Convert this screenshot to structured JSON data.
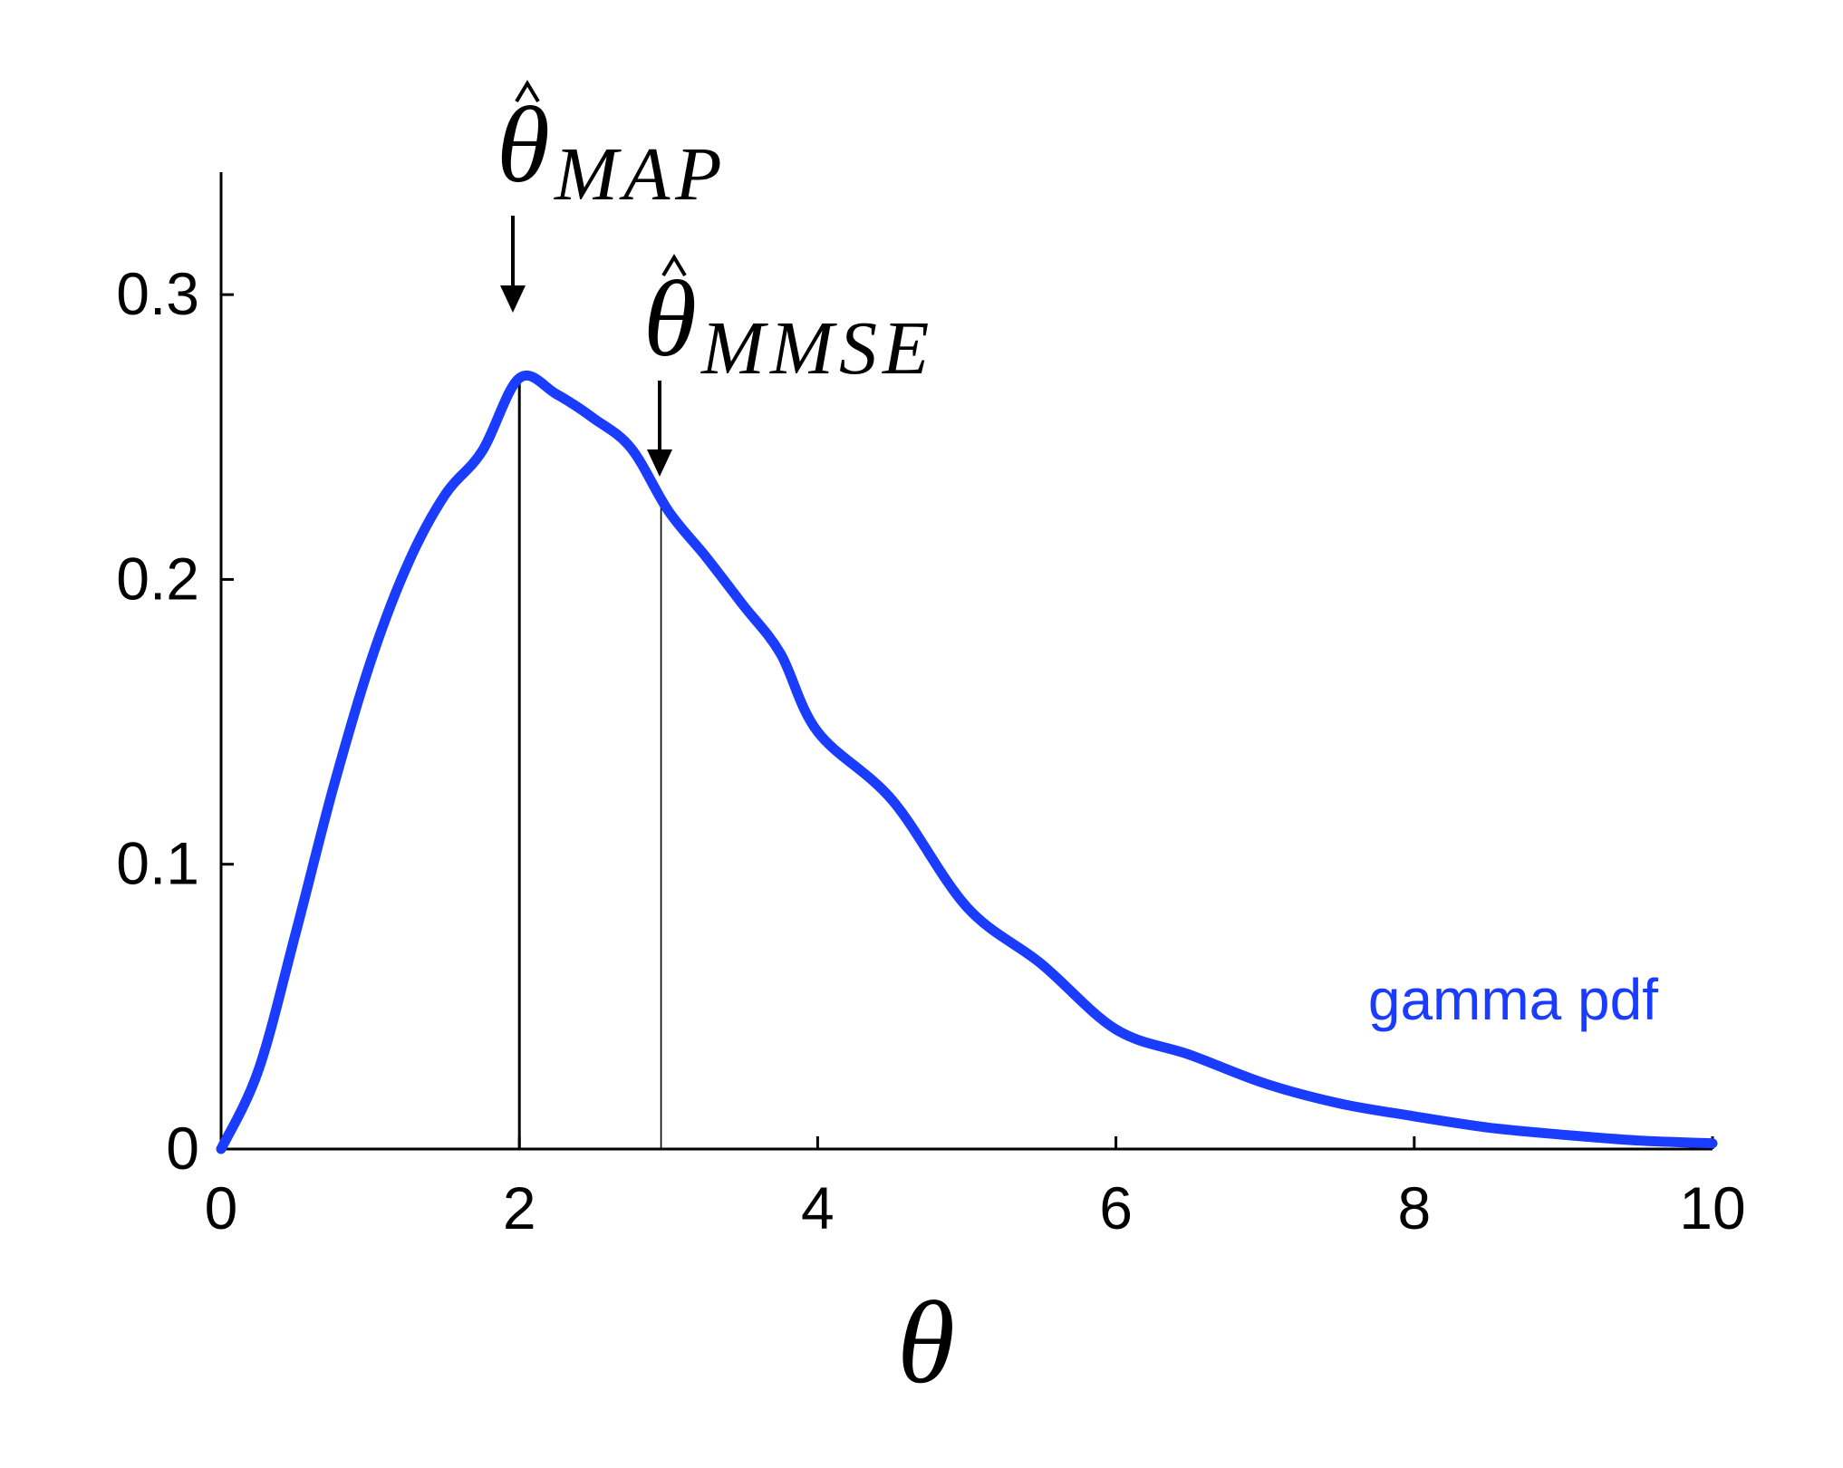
{
  "chart_data": {
    "type": "line",
    "title": "",
    "xlabel": "θ",
    "ylabel": "",
    "xlim": [
      0,
      10
    ],
    "ylim": [
      0,
      0.343
    ],
    "x_ticks": [
      0,
      2,
      4,
      6,
      8,
      10
    ],
    "x_tick_labels": [
      "0",
      "2",
      "4",
      "6",
      "8",
      "10"
    ],
    "y_ticks": [
      0,
      0.1,
      0.2,
      0.3
    ],
    "y_tick_labels": [
      "0",
      "0.1",
      "0.2",
      "0.3"
    ],
    "grid": false,
    "series": [
      {
        "name": "gamma pdf",
        "color": "#1a3cff",
        "x": [
          0,
          0.25,
          0.5,
          0.75,
          1,
          1.25,
          1.5,
          1.75,
          2,
          2.25,
          2.5,
          2.75,
          3,
          3.25,
          3.5,
          3.75,
          4,
          4.5,
          5,
          5.5,
          6,
          6.5,
          7,
          7.5,
          8,
          8.5,
          9,
          9.5,
          10
        ],
        "y": [
          0,
          0.0276,
          0.0758,
          0.1264,
          0.1707,
          0.2052,
          0.2296,
          0.245,
          0.2707,
          0.265,
          0.2565,
          0.246,
          0.224,
          0.208,
          0.191,
          0.174,
          0.1465,
          0.1225,
          0.085,
          0.065,
          0.042,
          0.033,
          0.023,
          0.016,
          0.0115,
          0.0075,
          0.005,
          0.003,
          0.002
        ]
      }
    ],
    "markers": [
      {
        "name": "MAP",
        "x": 2.0,
        "y": 0.2707,
        "label_base": "θ",
        "label_sub": "MAP"
      },
      {
        "name": "MMSE",
        "x": 2.95,
        "y": 0.23,
        "label_base": "θ",
        "label_sub": "MMSE"
      }
    ]
  }
}
